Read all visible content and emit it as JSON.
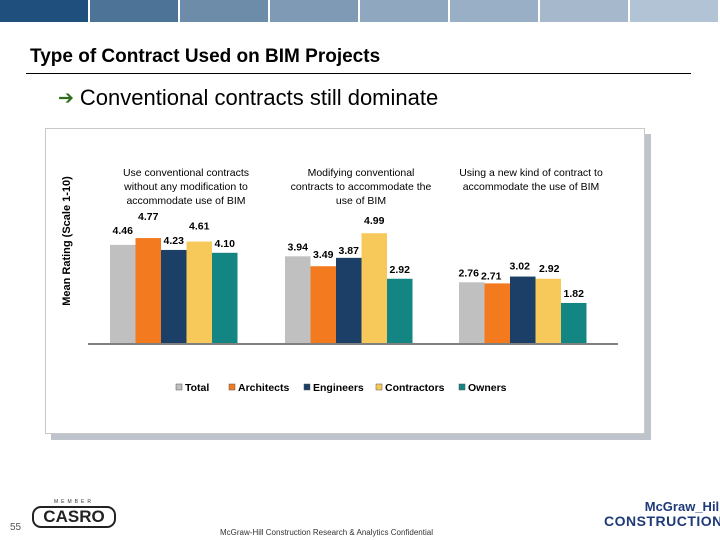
{
  "banner": {
    "colors": [
      "#1f4f7c",
      "#4d7396",
      "#6c8caa",
      "#7e9ab4",
      "#8fa7bf",
      "#98afc6",
      "#a5b8cc",
      "#b2c3d5"
    ]
  },
  "slide": {
    "title": "Type of Contract Used on BIM Projects",
    "bullet": "Conventional contracts still dominate",
    "bullet_icon": "arrow-right-icon",
    "page_number": "55",
    "footer": "McGraw-Hill Construction Research & Analytics Confidential",
    "casro_top": "MEMBER",
    "casro_name": "CASRO",
    "mh_line1": "McGraw_Hill",
    "mh_line2": "CONSTRUCTION"
  },
  "chart_data": {
    "type": "bar",
    "ylabel": "Mean Rating (Scale 1-10)",
    "ylim": [
      0,
      7
    ],
    "legend_position": "bottom",
    "categories": [
      [
        "Use conventional contracts",
        "without any modification to",
        "accommodate use of BIM"
      ],
      [
        "Modifying conventional",
        "contracts to accommodate the",
        "use of BIM"
      ],
      [
        "Using a new kind of contract to",
        "accommodate the use of BIM"
      ]
    ],
    "series": [
      {
        "name": "Total",
        "color": "#c0c0c0",
        "values": [
          4.46,
          3.94,
          2.76
        ],
        "labels": [
          "4.46",
          "3.94",
          "2.76"
        ]
      },
      {
        "name": "Architects",
        "color": "#f47a1f",
        "values": [
          4.77,
          3.49,
          2.71
        ],
        "labels": [
          "4.77",
          "3.49",
          "2.71"
        ]
      },
      {
        "name": "Engineers",
        "color": "#1b3f66",
        "values": [
          4.23,
          3.87,
          3.02
        ],
        "labels": [
          "4.23",
          "3.87",
          "3.02"
        ]
      },
      {
        "name": "Contractors",
        "color": "#f6c95a",
        "values": [
          4.61,
          4.99,
          2.92
        ],
        "labels": [
          "4.61",
          "4.99",
          "2.92"
        ]
      },
      {
        "name": "Owners",
        "color": "#138582",
        "values": [
          4.1,
          2.92,
          1.82
        ],
        "labels": [
          "4.10",
          "2.92",
          "1.82"
        ]
      }
    ]
  }
}
